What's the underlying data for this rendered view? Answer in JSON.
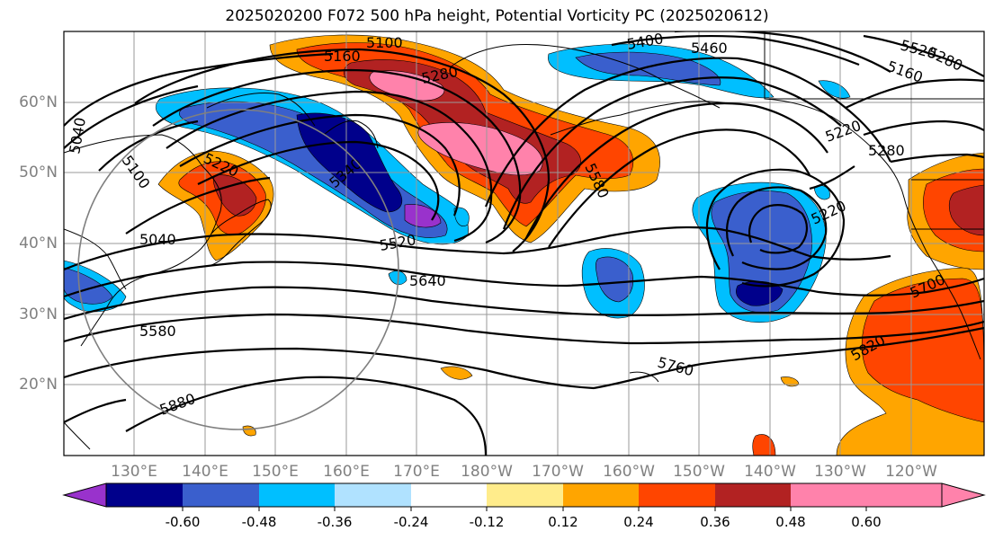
{
  "title": "2025020200 F072 500 hPa height, Potential Vorticity PC (2025020612)",
  "latitude_labels": [
    "60°N",
    "50°N",
    "40°N",
    "30°N",
    "20°N"
  ],
  "longitude_labels": [
    "130°E",
    "140°E",
    "150°E",
    "160°E",
    "170°E",
    "180°W",
    "170°W",
    "160°W",
    "150°W",
    "140°W",
    "130°W",
    "120°W"
  ],
  "contour_labels": [
    "5100",
    "5160",
    "5280",
    "5400",
    "5460",
    "5520",
    "5280",
    "5580",
    "5220",
    "5100",
    "5040",
    "5220",
    "5040",
    "5340",
    "5520",
    "5640",
    "5580",
    "5760",
    "5880",
    "5700",
    "5820",
    "5220",
    "5280",
    "5160"
  ],
  "colorbar": {
    "ticks": [
      "-0.60",
      "-0.48",
      "-0.36",
      "-0.24",
      "-0.12",
      "0.12",
      "0.24",
      "0.36",
      "0.48",
      "0.60"
    ],
    "colors": [
      "#9932cc",
      "#00008b",
      "#3a5fcd",
      "#00bfff",
      "#b0e2ff",
      "#ffffff",
      "#ffec8b",
      "#ffa500",
      "#ff4500",
      "#b22222",
      "#ff82ab"
    ]
  }
}
